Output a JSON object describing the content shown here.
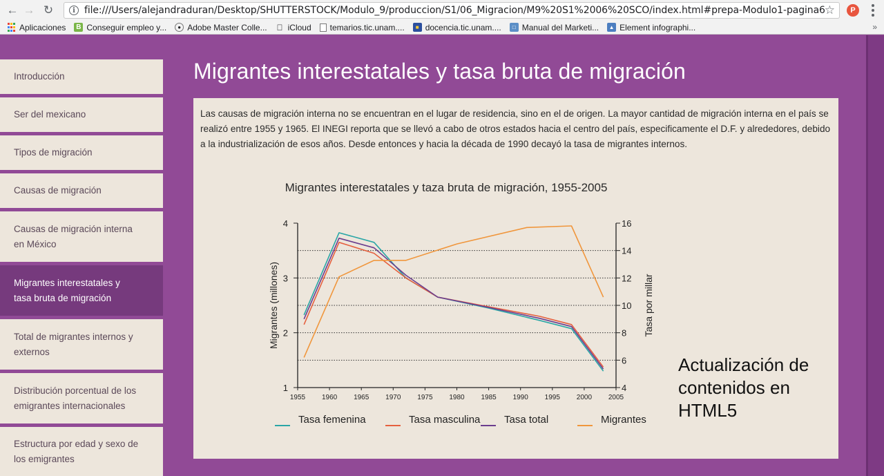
{
  "browser": {
    "url": "file:///Users/alejandraduran/Desktop/SHUTTERSTOCK/Modulo_9/produccion/S1/06_Migracion/M9%20S1%2006%20SCO/index.html#prepa-Modulo1-pagina6",
    "profile_initial": "P",
    "bookmarks": [
      {
        "label": "Aplicaciones",
        "icon": "apps-icon"
      },
      {
        "label": "Conseguir empleo y...",
        "icon": "green-b-icon"
      },
      {
        "label": "Adobe Master Colle...",
        "icon": "adobe-icon"
      },
      {
        "label": "iCloud",
        "icon": "apple-icon"
      },
      {
        "label": "temarios.tic.unam....",
        "icon": "page-icon"
      },
      {
        "label": "docencia.tic.unam....",
        "icon": "unam-icon"
      },
      {
        "label": "Manual del Marketi...",
        "icon": "manual-icon"
      },
      {
        "label": "Element infographi...",
        "icon": "element-icon"
      }
    ]
  },
  "sidebar": {
    "items": [
      {
        "label": "Introducción"
      },
      {
        "label": "Ser del mexicano"
      },
      {
        "label": "Tipos de migración"
      },
      {
        "label": "Causas de migración"
      },
      {
        "label": "Causas de migración interna en México"
      },
      {
        "label": "Migrantes interestatales y tasa bruta de migración"
      },
      {
        "label": "Total de migrantes internos y externos"
      },
      {
        "label": "Distribución porcentual de los emigrantes internacionales"
      },
      {
        "label": "Estructura por edad y sexo de los emigrantes"
      }
    ]
  },
  "main": {
    "title": "Migrantes interestatales y tasa bruta de migración",
    "intro": "Las causas de migración interna no se encuentran en el lugar de residencia, sino en el de origen. La mayor cantidad de migración interna en el país se realizó entre 1955 y 1965. El INEGI reporta que se llevó a cabo de otros estados hacia el centro del país, especificamente el D.F. y alrededores, debido a la industrialización de esos años. Desde entonces y hacia la década de 1990 decayó la tasa de migrantes internos.",
    "annotation": "Actualización de contenidos en HTML5"
  },
  "chart_data": {
    "type": "line",
    "title": "Migrantes interestatales y taza bruta de migración, 1955-2005",
    "ylabel": "Migrantes (millones)",
    "y2label": "Tasa por millar",
    "xlim": [
      1955,
      2005
    ],
    "ylim": [
      1,
      4
    ],
    "y2lim": [
      4,
      16
    ],
    "xticks": [
      1955,
      1960,
      1965,
      1970,
      1975,
      1980,
      1985,
      1990,
      1995,
      2000,
      2005
    ],
    "yticks": [
      1,
      2,
      3,
      4
    ],
    "y2ticks": [
      4,
      6,
      8,
      10,
      12,
      14,
      16
    ],
    "series": [
      {
        "name": "Tasa femenina",
        "axis": "y2",
        "color": "#2aa6a6",
        "x": [
          1956,
          1961.5,
          1967,
          1972,
          1977,
          1985,
          1993,
          1998,
          2003
        ],
        "y": [
          9.3,
          15.3,
          14.6,
          12.0,
          10.6,
          9.8,
          8.9,
          8.3,
          5.2
        ]
      },
      {
        "name": "Tasa masculina",
        "axis": "y2",
        "color": "#e5603f",
        "x": [
          1956,
          1961.5,
          1967,
          1972,
          1977,
          1985,
          1993,
          1998,
          2003
        ],
        "y": [
          8.6,
          14.6,
          13.8,
          12.0,
          10.6,
          9.9,
          9.2,
          8.6,
          5.5
        ]
      },
      {
        "name": "Tasa total",
        "axis": "y2",
        "color": "#6b3d8e",
        "x": [
          1956,
          1961.5,
          1967,
          1972,
          1977,
          1985,
          1993,
          1998,
          2003
        ],
        "y": [
          9.0,
          14.9,
          14.2,
          12.2,
          10.6,
          9.85,
          9.05,
          8.45,
          5.35
        ]
      },
      {
        "name": "Migrantes",
        "axis": "y",
        "color": "#f0963c",
        "x": [
          1956,
          1961.5,
          1967,
          1972,
          1980,
          1991,
          1998,
          2003
        ],
        "y": [
          1.55,
          3.02,
          3.32,
          3.32,
          3.62,
          3.92,
          3.95,
          2.65
        ]
      }
    ],
    "grid": "dotted-horizontal",
    "legend": "bottom"
  }
}
